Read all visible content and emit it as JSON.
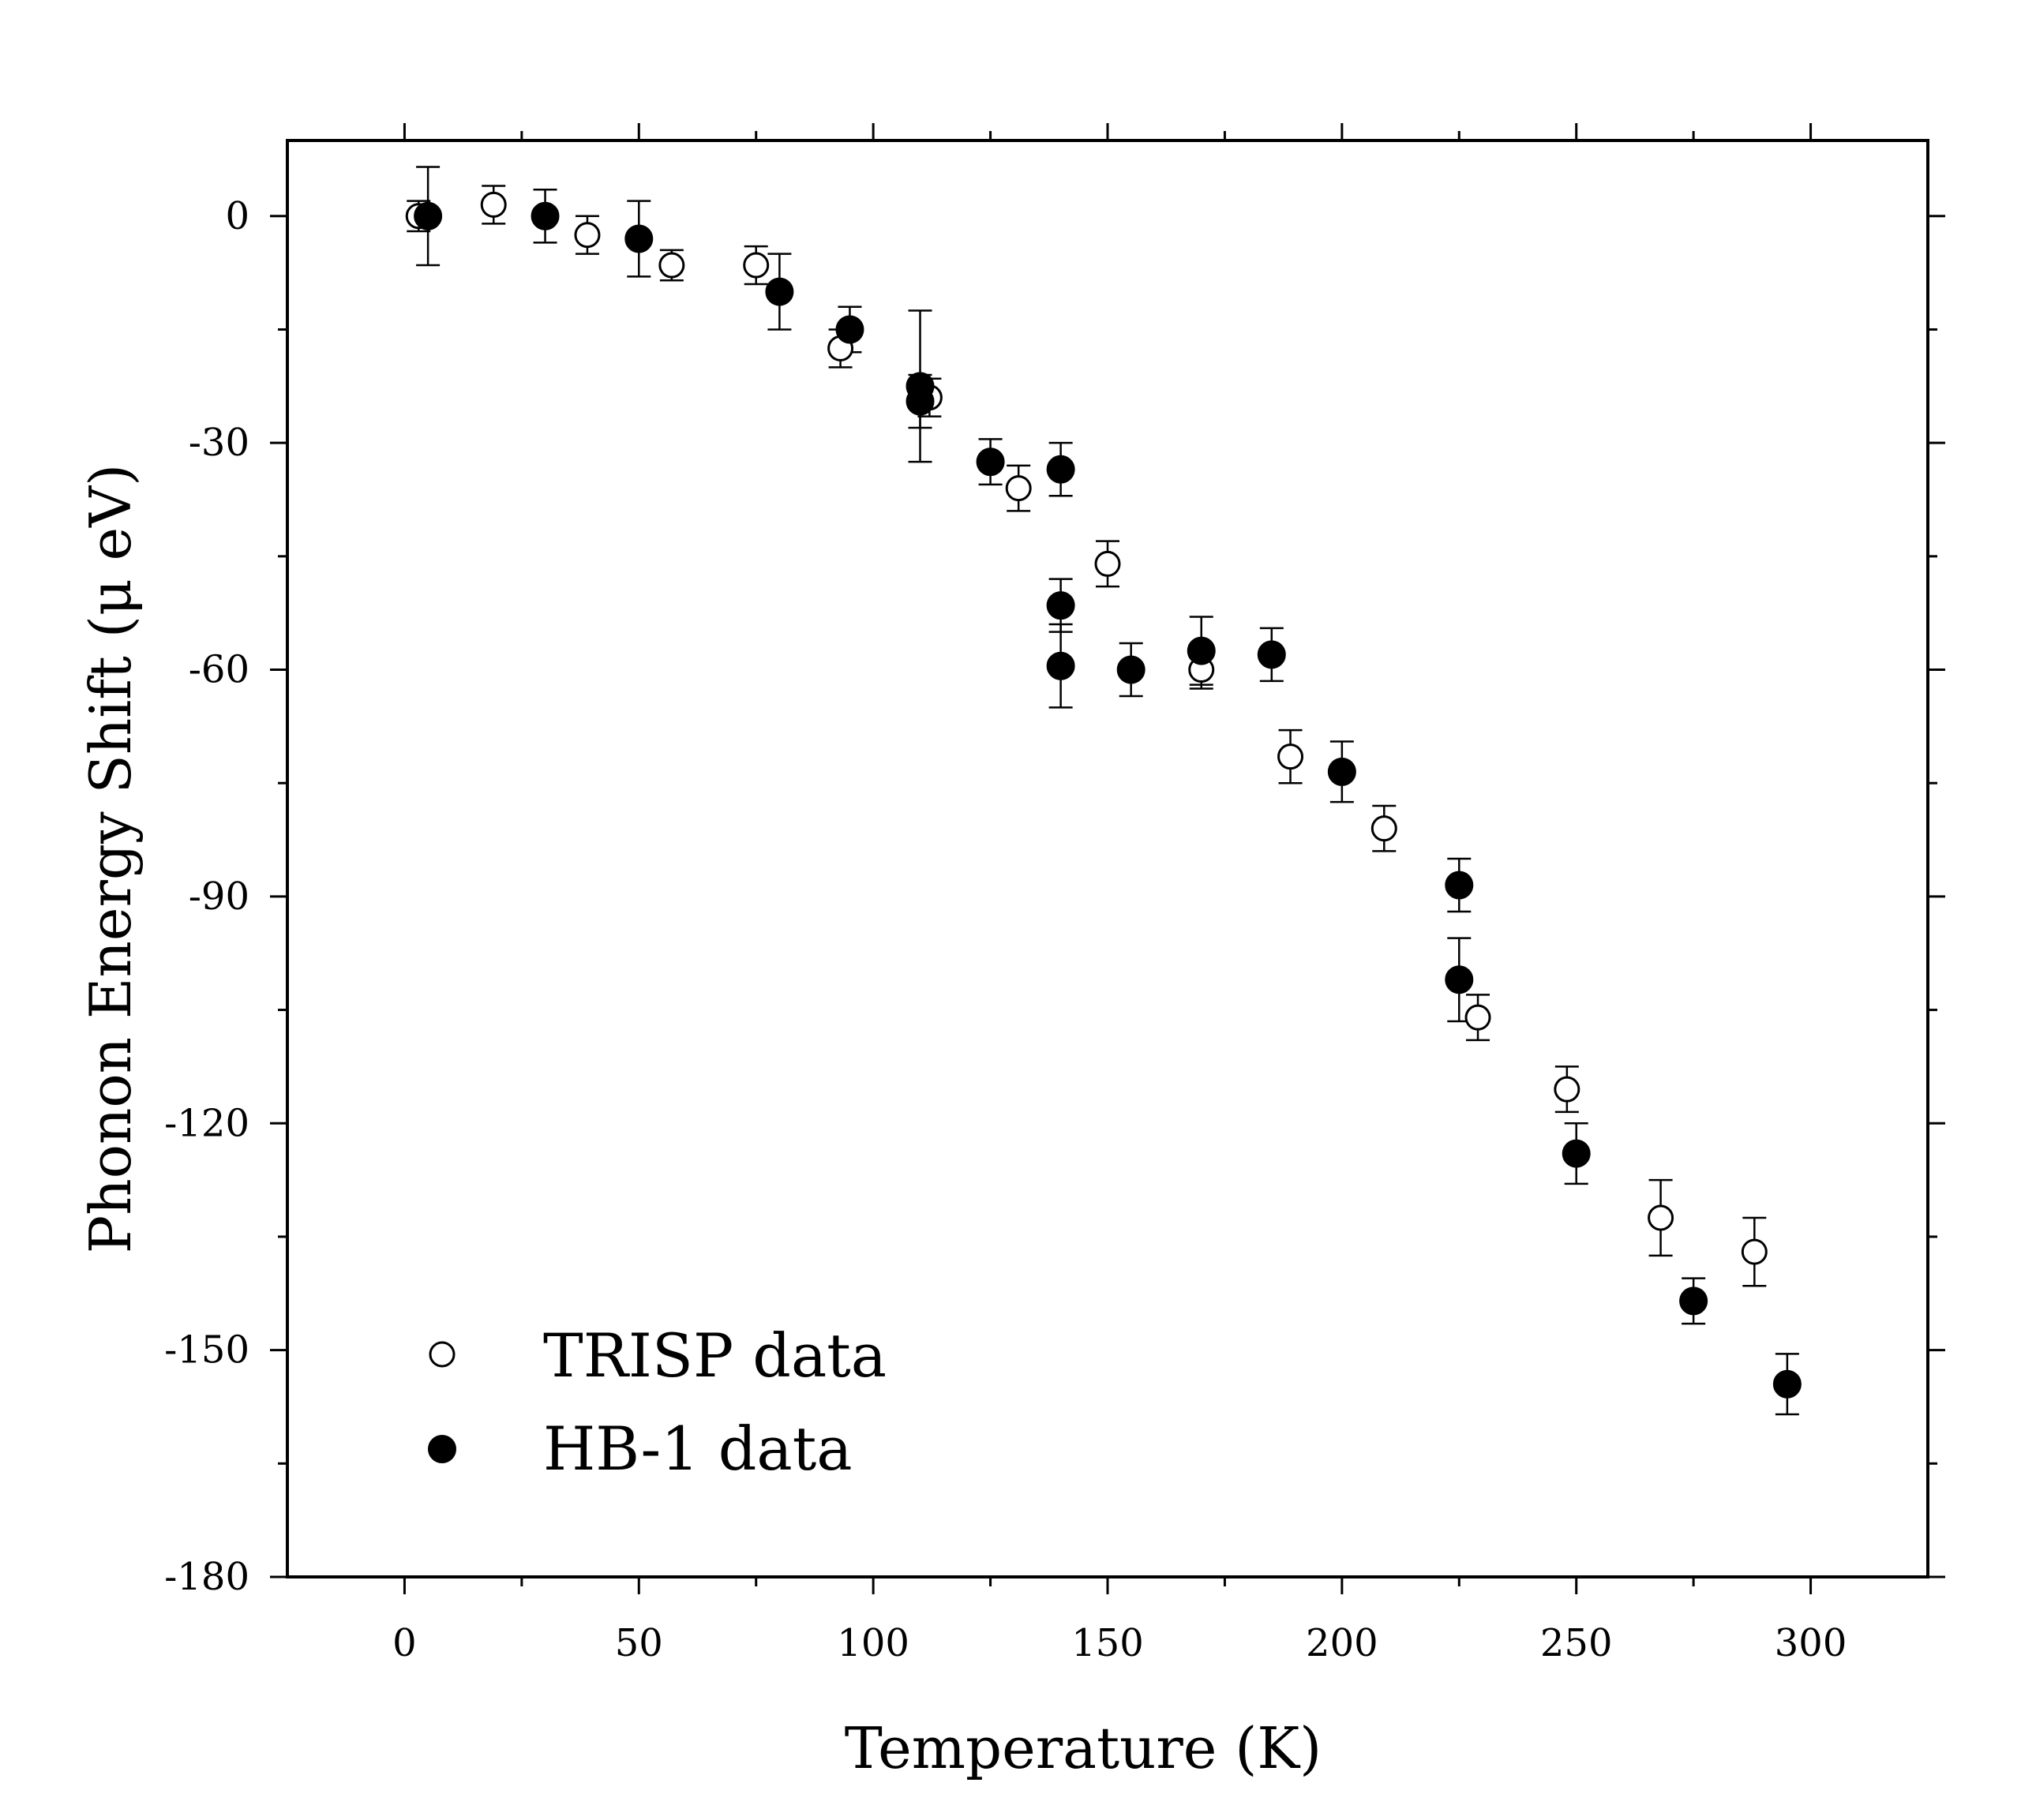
{
  "chart_data": {
    "type": "scatter",
    "title": "",
    "xlabel": "Temperature (K)",
    "ylabel": "Phonon Energy Shift (μ eV)",
    "xlim": [
      -25,
      325
    ],
    "ylim": [
      -180,
      10
    ],
    "xticks": [
      0,
      50,
      100,
      150,
      200,
      250,
      300
    ],
    "yticks": [
      0,
      -30,
      -60,
      -90,
      -120,
      -150,
      -180
    ],
    "xtick_labels": [
      "0",
      "50",
      "100",
      "150",
      "200",
      "250",
      "300"
    ],
    "ytick_labels": [
      "0",
      "-30",
      "-60",
      "-90",
      "-120",
      "-150",
      "-180"
    ],
    "grid": false,
    "legend_position": "bottom-left",
    "series": [
      {
        "name": "TRISP data",
        "marker": "open-circle",
        "color": "#000000",
        "points": [
          {
            "x": 3,
            "y": 0,
            "err": 2
          },
          {
            "x": 19,
            "y": 1.5,
            "err": 2.5
          },
          {
            "x": 39,
            "y": -2.5,
            "err": 2.5
          },
          {
            "x": 57,
            "y": -6.5,
            "err": 2
          },
          {
            "x": 75,
            "y": -6.5,
            "err": 2.5
          },
          {
            "x": 93,
            "y": -17.5,
            "err": 2.5
          },
          {
            "x": 112,
            "y": -24,
            "err": 2.5
          },
          {
            "x": 131,
            "y": -36,
            "err": 3
          },
          {
            "x": 150,
            "y": -46,
            "err": 3
          },
          {
            "x": 170,
            "y": -60,
            "err": 2.5
          },
          {
            "x": 189,
            "y": -71.5,
            "err": 3.5
          },
          {
            "x": 209,
            "y": -81,
            "err": 3
          },
          {
            "x": 229,
            "y": -106,
            "err": 3
          },
          {
            "x": 248,
            "y": -115.5,
            "err": 3
          },
          {
            "x": 268,
            "y": -132.5,
            "err": 5
          },
          {
            "x": 288,
            "y": -137,
            "err": 4.5
          }
        ]
      },
      {
        "name": "HB-1 data",
        "marker": "filled-circle",
        "color": "#000000",
        "points": [
          {
            "x": 5,
            "y": 0,
            "err": 6.5
          },
          {
            "x": 30,
            "y": 0,
            "err": 3.5
          },
          {
            "x": 50,
            "y": -3,
            "err": 5
          },
          {
            "x": 80,
            "y": -10,
            "err": 5
          },
          {
            "x": 95,
            "y": -15,
            "err": 3
          },
          {
            "x": 110,
            "y": -22.5,
            "err": 10
          },
          {
            "x": 110,
            "y": -24.5,
            "err": 3.5
          },
          {
            "x": 125,
            "y": -32.5,
            "err": 3
          },
          {
            "x": 140,
            "y": -33.5,
            "err": 3.5
          },
          {
            "x": 140,
            "y": -51.5,
            "err": 3.5
          },
          {
            "x": 140,
            "y": -59.5,
            "err": 5.5
          },
          {
            "x": 155,
            "y": -60,
            "err": 3.5
          },
          {
            "x": 170,
            "y": -57.5,
            "err": 4.5
          },
          {
            "x": 185,
            "y": -58,
            "err": 3.5
          },
          {
            "x": 200,
            "y": -73.5,
            "err": 4
          },
          {
            "x": 225,
            "y": -88.5,
            "err": 3.5
          },
          {
            "x": 225,
            "y": -101,
            "err": 5.5
          },
          {
            "x": 250,
            "y": -124,
            "err": 4
          },
          {
            "x": 275,
            "y": -143.5,
            "err": 3
          },
          {
            "x": 295,
            "y": -154.5,
            "err": 4
          }
        ]
      }
    ]
  }
}
